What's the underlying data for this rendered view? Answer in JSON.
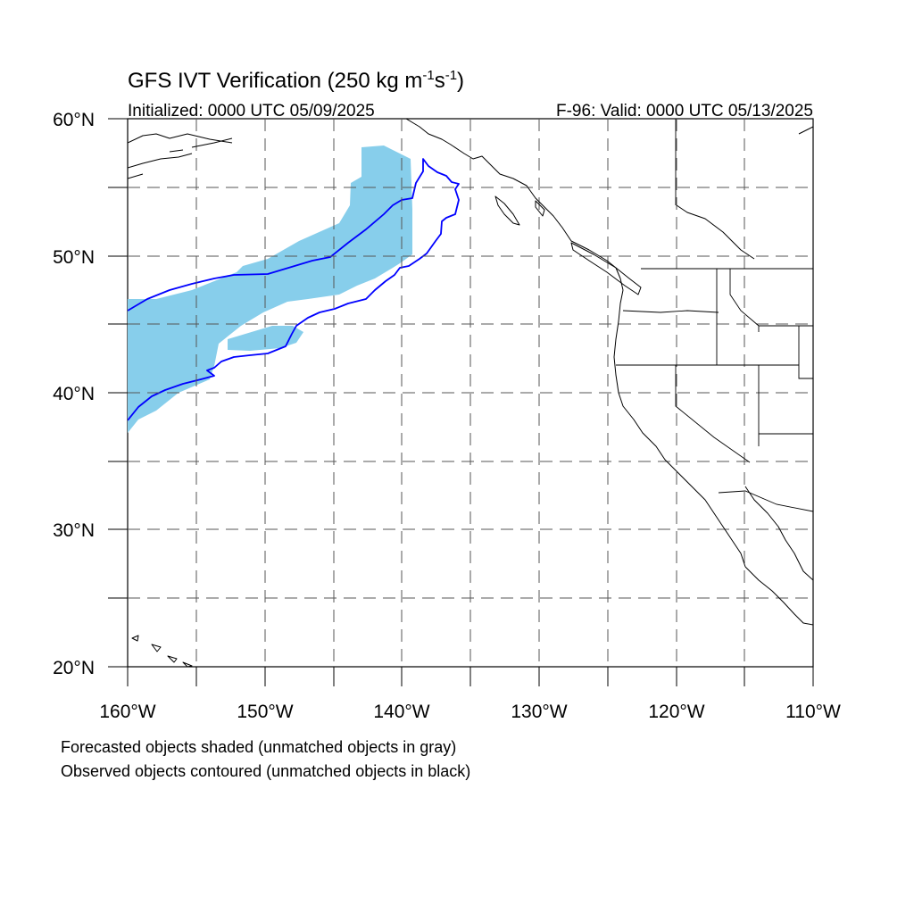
{
  "title": {
    "main": "GFS IVT Verification (250 kg m",
    "exp1": "-1",
    "mid": "s",
    "exp2": "-1",
    "close": ")"
  },
  "initialized": "Initialized: 0000 UTC 05/09/2025",
  "valid": "F-96: Valid: 0000 UTC 05/13/2025",
  "map": {
    "projection": "cylindrical equidistant",
    "lon_range": [
      -160,
      -110
    ],
    "lat_range": [
      20,
      60
    ],
    "lat_labels": [
      "60°N",
      "50°N",
      "40°N",
      "30°N",
      "20°N"
    ],
    "lon_labels": [
      "160°W",
      "150°W",
      "140°W",
      "130°W",
      "120°W",
      "110°W"
    ],
    "grid": "dashed, every 5°",
    "colors": {
      "forecast_shading": "#87ceeb",
      "observed_contour": "#0000ff",
      "coastline": "#000000"
    }
  },
  "legend": {
    "line1": "Forecasted objects shaded (unmatched objects in gray)",
    "line2": "Observed objects contoured (unmatched objects in black)"
  }
}
